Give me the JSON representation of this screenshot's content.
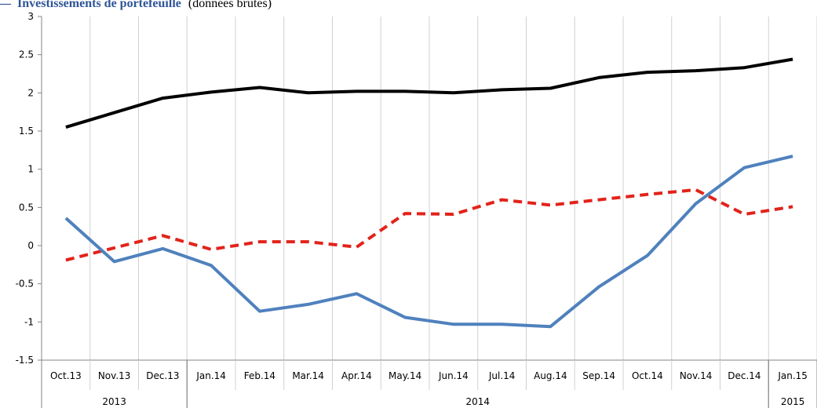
{
  "legend": {
    "dash": "—",
    "title": "Investissements de portefeuille",
    "subtitle": "(données brutes)",
    "color": "#2f5597"
  },
  "chart_data": {
    "type": "line",
    "categories": [
      "Oct.13",
      "Nov.13",
      "Dec.13",
      "Jan.14",
      "Feb.14",
      "Mar.14",
      "Apr.14",
      "May.14",
      "Jun.14",
      "Jul.14",
      "Aug.14",
      "Sep.14",
      "Oct.14",
      "Nov.14",
      "Dec.14",
      "Jan.15"
    ],
    "years": [
      {
        "label": "2013",
        "from": 0,
        "to": 3
      },
      {
        "label": "2014",
        "from": 3,
        "to": 15
      },
      {
        "label": "2015",
        "from": 15,
        "to": 16
      }
    ],
    "ylim": [
      -1.5,
      3
    ],
    "yticks": [
      "-1.5",
      "-1",
      "-0.5",
      "0",
      "0.5",
      "1",
      "1.5",
      "2",
      "2.5",
      "3"
    ],
    "grid": "vertical",
    "series": [
      {
        "color": "#000000",
        "style": "solid",
        "values": [
          1.55,
          1.74,
          1.93,
          2.01,
          2.07,
          2.0,
          2.02,
          2.02,
          2.0,
          2.04,
          2.06,
          2.2,
          2.27,
          2.29,
          2.33,
          2.44
        ]
      },
      {
        "color": "#e2231a",
        "style": "dashed",
        "values": [
          -0.19,
          -0.03,
          0.13,
          -0.05,
          0.05,
          0.05,
          -0.02,
          0.42,
          0.41,
          0.6,
          0.53,
          0.6,
          0.67,
          0.73,
          0.41,
          0.51
        ]
      },
      {
        "color": "#4f81bd",
        "style": "solid",
        "values": [
          0.36,
          -0.21,
          -0.04,
          -0.26,
          -0.86,
          -0.77,
          -0.63,
          -0.94,
          -1.03,
          -1.03,
          -1.06,
          -0.54,
          -0.13,
          0.55,
          1.02,
          1.17
        ]
      }
    ]
  }
}
